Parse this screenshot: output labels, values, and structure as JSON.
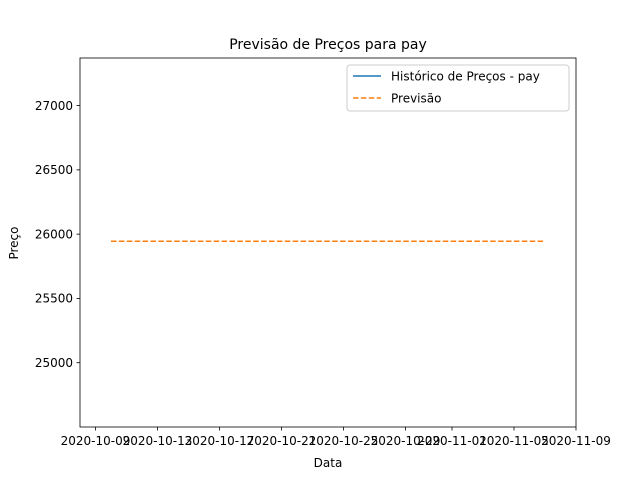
{
  "chart_data": {
    "type": "line",
    "title": "Previsão de Preços para pay",
    "xlabel": "Data",
    "ylabel": "Preço",
    "x_ticks": [
      "2020-10-09",
      "2020-10-13",
      "2020-10-17",
      "2020-10-21",
      "2020-10-25",
      "2020-10-29",
      "2020-11-01",
      "2020-11-05",
      "2020-11-09"
    ],
    "y_ticks": [
      25000,
      25500,
      26000,
      26500,
      27000
    ],
    "ylim": [
      24500,
      27370
    ],
    "xlim": [
      "2020-10-08",
      "2020-11-09"
    ],
    "grid": false,
    "legend_position": "top-right",
    "series": [
      {
        "name": "Histórico de Preços - pay",
        "style": "solid",
        "color": "#1f77b4",
        "x": [],
        "values": []
      },
      {
        "name": "Previsão",
        "style": "dashed",
        "color": "#ff7f0e",
        "x": [
          "2020-10-10",
          "2020-11-07"
        ],
        "values": [
          25945,
          25945
        ]
      }
    ]
  }
}
